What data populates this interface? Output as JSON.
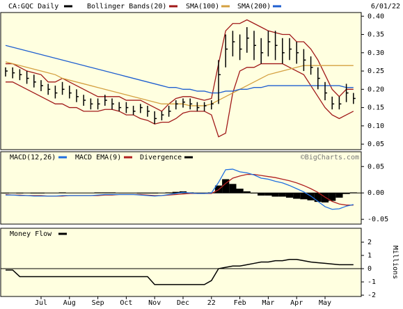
{
  "chart_data": [
    {
      "type": "ohlc",
      "date_label": "6/01/22",
      "categories": [
        null,
        null,
        null,
        null,
        null,
        "Jul",
        null,
        null,
        null,
        "Aug",
        null,
        null,
        null,
        "Sep",
        null,
        null,
        null,
        "Oct",
        null,
        null,
        null,
        "Nov",
        null,
        null,
        null,
        "Dec",
        null,
        null,
        null,
        "22",
        null,
        null,
        null,
        "Feb",
        null,
        null,
        null,
        "Mar",
        null,
        null,
        null,
        "Apr",
        null,
        null,
        null,
        "May",
        null,
        null,
        null,
        null
      ],
      "ylim": [
        0.035,
        0.41
      ],
      "yticks": [
        {
          "value": 0.05,
          "label": "0.05"
        },
        {
          "value": 0.1,
          "label": "0.10"
        },
        {
          "value": 0.15,
          "label": "0.15"
        },
        {
          "value": 0.2,
          "label": "0.20"
        },
        {
          "value": 0.25,
          "label": "0.25"
        },
        {
          "value": 0.3,
          "label": "0.30"
        },
        {
          "value": 0.35,
          "label": "0.35"
        },
        {
          "value": 0.4,
          "label": "0.40"
        }
      ],
      "series": [
        {
          "name": "CA:GQC Daily",
          "color": "#000000",
          "values": [
            0.25,
            0.245,
            0.24,
            0.23,
            0.22,
            0.21,
            0.2,
            0.19,
            0.2,
            0.19,
            0.18,
            0.17,
            0.16,
            0.16,
            0.17,
            0.16,
            0.15,
            0.15,
            0.14,
            0.15,
            0.14,
            0.12,
            0.13,
            0.14,
            0.16,
            0.165,
            0.16,
            0.15,
            0.155,
            0.16,
            0.24,
            0.31,
            0.33,
            0.31,
            0.34,
            0.32,
            0.3,
            0.33,
            0.32,
            0.3,
            0.31,
            0.3,
            0.28,
            0.26,
            0.23,
            0.19,
            0.16,
            0.16,
            0.19,
            0.175
          ],
          "high": [
            0.26,
            0.26,
            0.255,
            0.25,
            0.24,
            0.225,
            0.215,
            0.21,
            0.22,
            0.21,
            0.2,
            0.185,
            0.175,
            0.175,
            0.185,
            0.175,
            0.165,
            0.165,
            0.155,
            0.16,
            0.155,
            0.14,
            0.14,
            0.155,
            0.17,
            0.175,
            0.175,
            0.165,
            0.165,
            0.17,
            0.28,
            0.35,
            0.36,
            0.35,
            0.37,
            0.36,
            0.34,
            0.36,
            0.36,
            0.34,
            0.34,
            0.33,
            0.31,
            0.29,
            0.26,
            0.22,
            0.18,
            0.18,
            0.215,
            0.19
          ],
          "low": [
            0.235,
            0.23,
            0.225,
            0.215,
            0.205,
            0.195,
            0.185,
            0.175,
            0.185,
            0.175,
            0.165,
            0.155,
            0.145,
            0.145,
            0.155,
            0.145,
            0.14,
            0.135,
            0.13,
            0.135,
            0.125,
            0.105,
            0.115,
            0.125,
            0.145,
            0.15,
            0.145,
            0.14,
            0.14,
            0.145,
            0.16,
            0.26,
            0.29,
            0.28,
            0.3,
            0.28,
            0.27,
            0.29,
            0.28,
            0.27,
            0.28,
            0.27,
            0.25,
            0.24,
            0.2,
            0.17,
            0.145,
            0.145,
            0.165,
            0.16
          ]
        },
        {
          "name": "Bollinger Bands(20)",
          "color": "#a01818",
          "upper": [
            0.27,
            0.27,
            0.26,
            0.25,
            0.245,
            0.24,
            0.22,
            0.22,
            0.23,
            0.22,
            0.21,
            0.2,
            0.19,
            0.18,
            0.18,
            0.18,
            0.18,
            0.17,
            0.17,
            0.17,
            0.16,
            0.15,
            0.14,
            0.16,
            0.175,
            0.18,
            0.18,
            0.175,
            0.17,
            0.175,
            0.27,
            0.36,
            0.38,
            0.38,
            0.39,
            0.38,
            0.37,
            0.36,
            0.355,
            0.35,
            0.35,
            0.33,
            0.33,
            0.31,
            0.28,
            0.24,
            0.2,
            0.18,
            0.2,
            0.2
          ],
          "lower": [
            0.22,
            0.22,
            0.21,
            0.2,
            0.19,
            0.18,
            0.17,
            0.16,
            0.16,
            0.15,
            0.15,
            0.14,
            0.14,
            0.14,
            0.145,
            0.145,
            0.14,
            0.13,
            0.13,
            0.12,
            0.115,
            0.105,
            0.11,
            0.11,
            0.12,
            0.135,
            0.14,
            0.14,
            0.14,
            0.13,
            0.07,
            0.08,
            0.19,
            0.25,
            0.26,
            0.26,
            0.27,
            0.27,
            0.27,
            0.27,
            0.26,
            0.25,
            0.24,
            0.21,
            0.18,
            0.15,
            0.13,
            0.12,
            0.13,
            0.14
          ]
        },
        {
          "name": "SMA(100)",
          "color": "#d4a040",
          "values": [
            0.275,
            0.27,
            0.265,
            0.26,
            0.255,
            0.25,
            0.245,
            0.24,
            0.23,
            0.225,
            0.22,
            0.215,
            0.21,
            0.205,
            0.2,
            0.195,
            0.19,
            0.185,
            0.18,
            0.175,
            0.17,
            0.165,
            0.16,
            0.16,
            0.16,
            0.16,
            0.155,
            0.155,
            0.155,
            0.16,
            0.17,
            0.18,
            0.19,
            0.2,
            0.21,
            0.22,
            0.23,
            0.24,
            0.245,
            0.25,
            0.255,
            0.26,
            0.265,
            0.265,
            0.265,
            0.265,
            0.265,
            0.265,
            0.265,
            0.265
          ]
        },
        {
          "name": "SMA(200)",
          "color": "#1f5fd0",
          "values": [
            0.32,
            0.315,
            0.31,
            0.305,
            0.3,
            0.295,
            0.29,
            0.285,
            0.28,
            0.275,
            0.27,
            0.265,
            0.26,
            0.255,
            0.25,
            0.245,
            0.24,
            0.235,
            0.23,
            0.225,
            0.22,
            0.215,
            0.21,
            0.205,
            0.205,
            0.2,
            0.2,
            0.195,
            0.195,
            0.19,
            0.19,
            0.195,
            0.195,
            0.2,
            0.2,
            0.205,
            0.205,
            0.21,
            0.21,
            0.21,
            0.21,
            0.21,
            0.21,
            0.21,
            0.21,
            0.21,
            0.21,
            0.21,
            0.205,
            0.205
          ]
        }
      ]
    },
    {
      "type": "macd",
      "annotation": "©BigCharts.com",
      "ylim": [
        -0.059,
        0.078
      ],
      "yticks": [
        {
          "value": -0.05,
          "label": "-0.05"
        },
        {
          "value": 0,
          "label": "0.00"
        },
        {
          "value": 0.05,
          "label": "0.05"
        }
      ],
      "series": [
        {
          "name": "MACD(12,26)",
          "color": "#1f6fe0",
          "values": [
            -0.004,
            -0.004,
            -0.005,
            -0.005,
            -0.006,
            -0.006,
            -0.006,
            -0.006,
            -0.005,
            -0.005,
            -0.005,
            -0.005,
            -0.005,
            -0.004,
            -0.003,
            -0.003,
            -0.003,
            -0.003,
            -0.003,
            -0.004,
            -0.005,
            -0.006,
            -0.005,
            -0.003,
            -0.001,
            0.001,
            0,
            -0.001,
            -0.001,
            0,
            0.02,
            0.044,
            0.045,
            0.04,
            0.038,
            0.034,
            0.028,
            0.026,
            0.022,
            0.019,
            0.014,
            0.008,
            0.002,
            -0.006,
            -0.016,
            -0.026,
            -0.031,
            -0.03,
            -0.025,
            -0.022
          ]
        },
        {
          "name": "MACD EMA(9)",
          "color": "#b02020",
          "values": [
            -0.003,
            -0.004,
            -0.004,
            -0.005,
            -0.005,
            -0.005,
            -0.006,
            -0.006,
            -0.006,
            -0.005,
            -0.005,
            -0.005,
            -0.005,
            -0.005,
            -0.004,
            -0.004,
            -0.003,
            -0.003,
            -0.003,
            -0.003,
            -0.004,
            -0.005,
            -0.005,
            -0.004,
            -0.003,
            -0.002,
            -0.001,
            -0.001,
            -0.001,
            -0.001,
            0.006,
            0.018,
            0.028,
            0.032,
            0.035,
            0.035,
            0.033,
            0.031,
            0.029,
            0.026,
            0.023,
            0.019,
            0.014,
            0.008,
            0.001,
            -0.008,
            -0.016,
            -0.021,
            -0.023,
            -0.023
          ]
        },
        {
          "name": "Divergence",
          "color": "#000000",
          "values": [
            -0.001,
            0,
            -0.001,
            0,
            -0.001,
            -0.001,
            0,
            0,
            0.001,
            0,
            0,
            0,
            0,
            0.001,
            0.001,
            0.001,
            0,
            0,
            0,
            -0.001,
            -0.001,
            -0.001,
            0,
            0.001,
            0.002,
            0.003,
            0.001,
            0,
            0,
            0.001,
            0.014,
            0.026,
            0.017,
            0.008,
            0.003,
            -0.001,
            -0.005,
            -0.005,
            -0.007,
            -0.007,
            -0.009,
            -0.011,
            -0.012,
            -0.014,
            -0.017,
            -0.018,
            -0.015,
            -0.009,
            -0.002,
            0.001
          ]
        }
      ]
    },
    {
      "type": "line",
      "ylabel": "Millions",
      "ylim": [
        -2.1,
        3.05
      ],
      "yticks": [
        -2,
        -1,
        0,
        1,
        2
      ],
      "series": [
        {
          "name": "Money Flow",
          "color": "#000000",
          "values": [
            -0.1,
            -0.1,
            -0.6,
            -0.6,
            -0.6,
            -0.6,
            -0.6,
            -0.6,
            -0.6,
            -0.6,
            -0.6,
            -0.6,
            -0.6,
            -0.6,
            -0.6,
            -0.6,
            -0.6,
            -0.6,
            -0.6,
            -0.6,
            -0.6,
            -1.2,
            -1.2,
            -1.2,
            -1.2,
            -1.2,
            -1.2,
            -1.2,
            -1.2,
            -0.9,
            0,
            0.1,
            0.2,
            0.2,
            0.3,
            0.4,
            0.5,
            0.5,
            0.6,
            0.6,
            0.7,
            0.7,
            0.6,
            0.5,
            0.45,
            0.4,
            0.35,
            0.3,
            0.3,
            0.3
          ]
        }
      ]
    }
  ]
}
